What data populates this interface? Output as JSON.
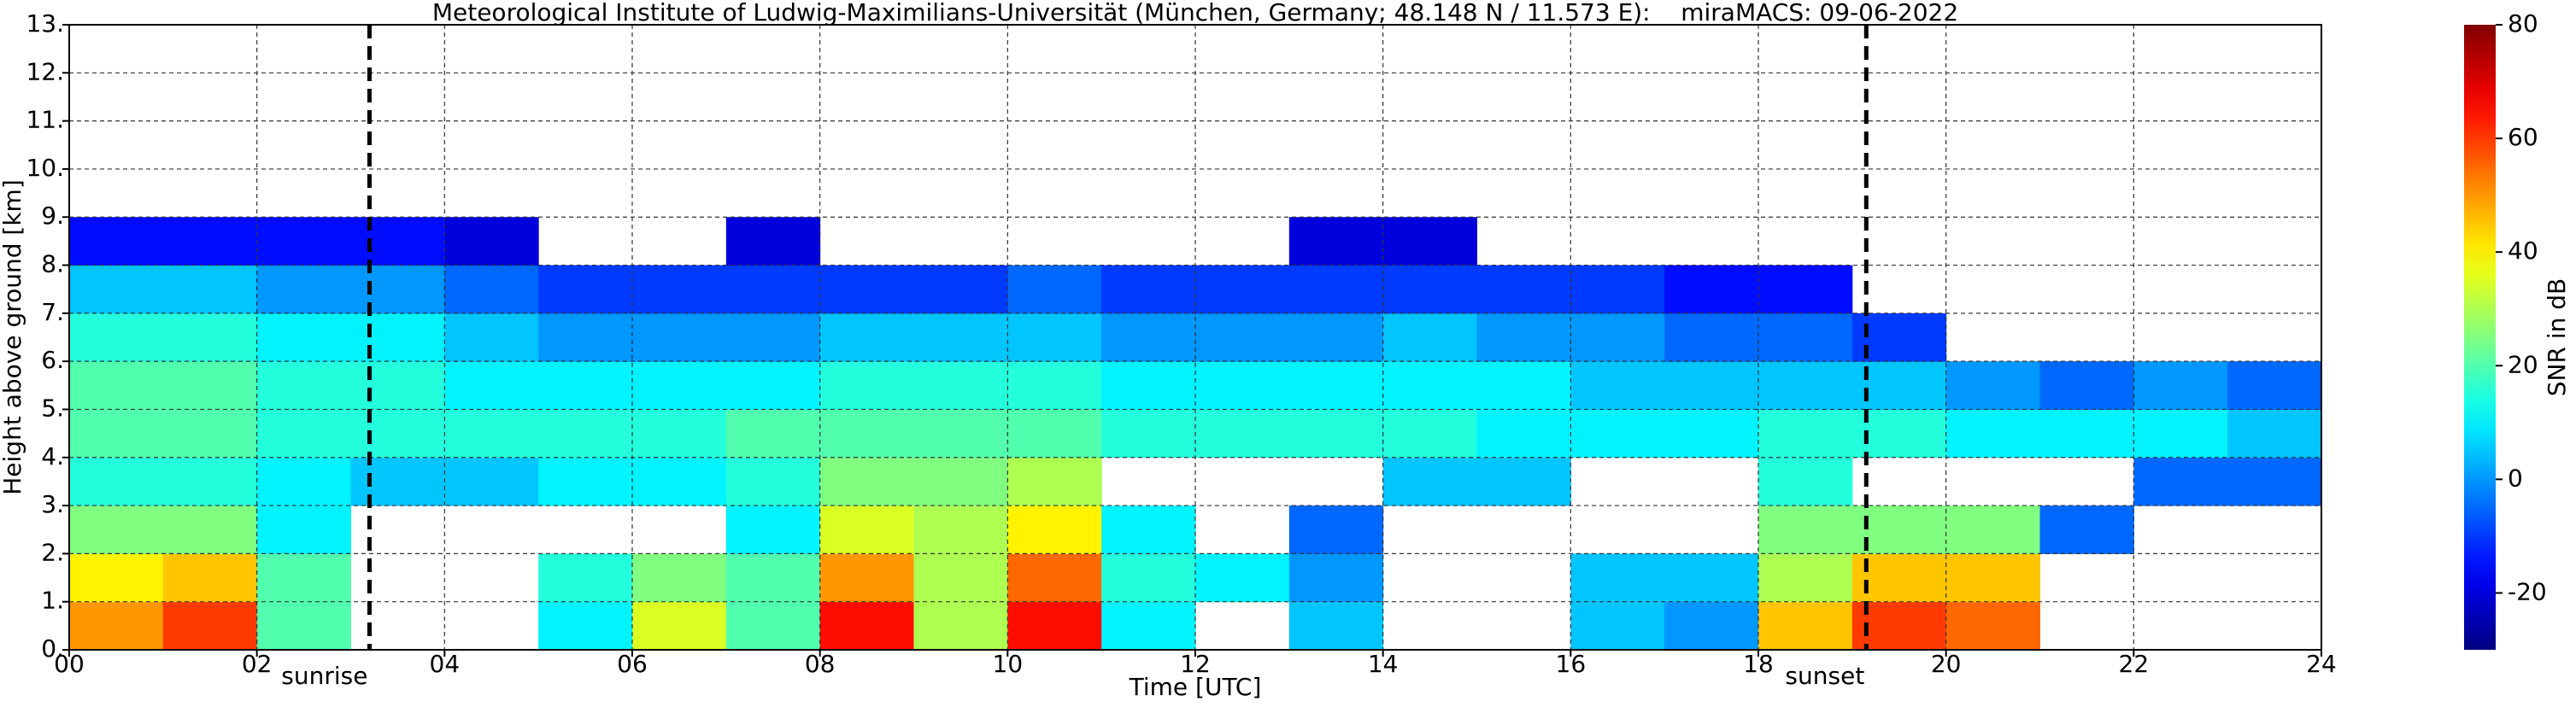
{
  "chart_data": {
    "type": "heatmap",
    "title": "Meteorological Institute of Ludwig-Maximilians-Universität (München, Germany; 48.148 N / 11.573 E):    miraMACS: 09-06-2022",
    "xlabel": "Time [UTC]",
    "ylabel": "Height above ground [km]",
    "colorbar_label": "SNR in dB",
    "colormap": "jet",
    "grid": true,
    "xlim": [
      0,
      24
    ],
    "ylim": [
      0,
      13
    ],
    "xticks": [
      {
        "value": 0,
        "label": "00"
      },
      {
        "value": 2,
        "label": "02"
      },
      {
        "value": 4,
        "label": "04"
      },
      {
        "value": 6,
        "label": "06"
      },
      {
        "value": 8,
        "label": "08"
      },
      {
        "value": 10,
        "label": "10"
      },
      {
        "value": 12,
        "label": "12"
      },
      {
        "value": 14,
        "label": "14"
      },
      {
        "value": 16,
        "label": "16"
      },
      {
        "value": 18,
        "label": "18"
      },
      {
        "value": 20,
        "label": "20"
      },
      {
        "value": 22,
        "label": "22"
      },
      {
        "value": 24,
        "label": "24"
      }
    ],
    "yticks": [
      {
        "value": 0,
        "label": "0."
      },
      {
        "value": 1,
        "label": "1."
      },
      {
        "value": 2,
        "label": "2."
      },
      {
        "value": 3,
        "label": "3."
      },
      {
        "value": 4,
        "label": "4."
      },
      {
        "value": 5,
        "label": "5."
      },
      {
        "value": 6,
        "label": "6."
      },
      {
        "value": 7,
        "label": "7."
      },
      {
        "value": 8,
        "label": "8."
      },
      {
        "value": 9,
        "label": "9."
      },
      {
        "value": 10,
        "label": "10."
      },
      {
        "value": 11,
        "label": "11."
      },
      {
        "value": 12,
        "label": "12."
      },
      {
        "value": 13,
        "label": "13."
      }
    ],
    "zlim": [
      -30,
      80
    ],
    "zticks": [
      -20,
      0,
      20,
      40,
      60,
      80
    ],
    "annotations": [
      {
        "text": "sunrise",
        "x": 3.2
      },
      {
        "text": "sunset",
        "x": 19.15
      }
    ],
    "x_edges": [
      0,
      1,
      2,
      3,
      4,
      5,
      6,
      7,
      8,
      9,
      10,
      11,
      12,
      13,
      14,
      15,
      16,
      17,
      18,
      19,
      20,
      21,
      22,
      23,
      24
    ],
    "y_edges": [
      0,
      1,
      2,
      3,
      4,
      5,
      6,
      7,
      8,
      9
    ],
    "z": [
      [
        50,
        40,
        25,
        15,
        20,
        20,
        15,
        5,
        -15
      ],
      [
        60,
        45,
        25,
        15,
        20,
        20,
        15,
        5,
        -15
      ],
      [
        20,
        20,
        10,
        10,
        15,
        15,
        10,
        0,
        -15
      ],
      [
        null,
        null,
        null,
        5,
        15,
        15,
        10,
        0,
        -15
      ],
      [
        null,
        null,
        null,
        5,
        15,
        10,
        5,
        -5,
        -20
      ],
      [
        10,
        15,
        null,
        10,
        15,
        10,
        0,
        -10,
        null
      ],
      [
        35,
        25,
        null,
        10,
        15,
        10,
        0,
        -10,
        null
      ],
      [
        20,
        20,
        10,
        15,
        20,
        10,
        0,
        -10,
        -20
      ],
      [
        65,
        50,
        35,
        25,
        20,
        15,
        5,
        -10,
        null
      ],
      [
        30,
        30,
        30,
        25,
        20,
        15,
        5,
        -10,
        null
      ],
      [
        65,
        55,
        40,
        30,
        20,
        15,
        5,
        -5,
        null
      ],
      [
        10,
        15,
        10,
        null,
        15,
        10,
        0,
        -10,
        null
      ],
      [
        null,
        10,
        null,
        null,
        15,
        10,
        0,
        -10,
        null
      ],
      [
        5,
        0,
        -5,
        null,
        15,
        10,
        0,
        -10,
        -20
      ],
      [
        null,
        null,
        null,
        5,
        15,
        10,
        5,
        -10,
        -20
      ],
      [
        null,
        null,
        null,
        5,
        10,
        10,
        0,
        -10,
        null
      ],
      [
        5,
        5,
        null,
        null,
        10,
        5,
        0,
        -10,
        null
      ],
      [
        0,
        5,
        null,
        null,
        10,
        5,
        -5,
        -15,
        null
      ],
      [
        45,
        30,
        25,
        15,
        15,
        5,
        -5,
        -15,
        null
      ],
      [
        60,
        45,
        25,
        null,
        15,
        5,
        -10,
        null,
        null
      ],
      [
        55,
        45,
        25,
        null,
        10,
        0,
        null,
        null,
        null
      ],
      [
        null,
        null,
        -5,
        null,
        10,
        -5,
        null,
        null,
        null
      ],
      [
        null,
        null,
        null,
        -5,
        10,
        0,
        null,
        null,
        null
      ],
      [
        null,
        null,
        null,
        -5,
        5,
        -5,
        null,
        null,
        null
      ]
    ]
  }
}
